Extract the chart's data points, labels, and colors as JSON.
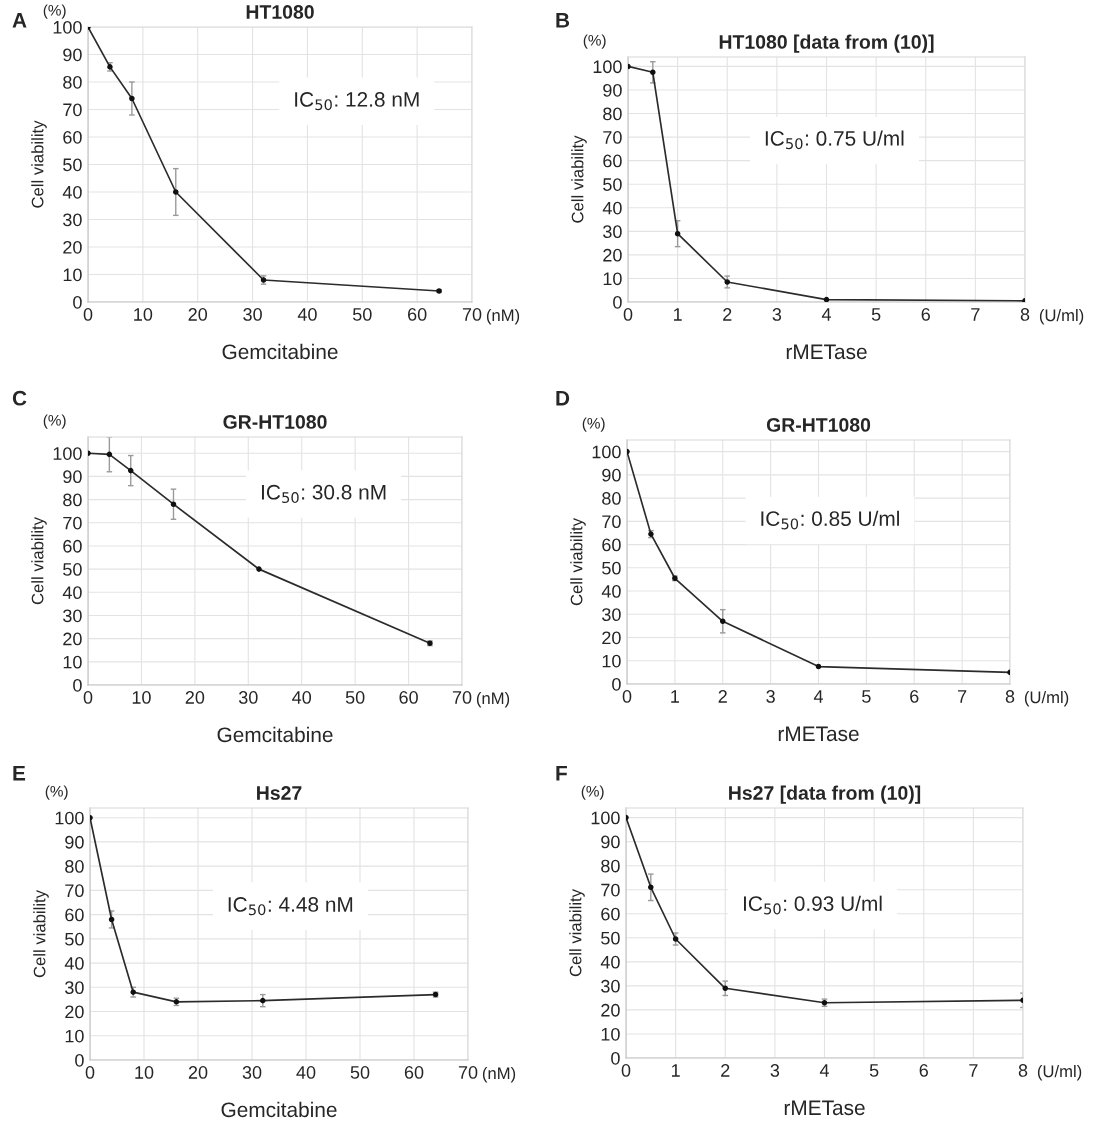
{
  "chart_data": [
    {
      "type": "line",
      "title": "HT1080",
      "xlabel": "Gemcitabine",
      "ylabel": "Cell viability",
      "annotations": [
        "A",
        "(%)",
        "(nM)",
        "IC$_{50}$: 12.8 nM"
      ],
      "x": [
        0,
        4,
        8,
        16,
        32,
        64
      ],
      "series": [
        {
          "color": "#2b2b2b",
          "values": [
            100,
            85.5,
            74,
            40,
            8,
            4
          ],
          "errors": [
            null,
            1.5,
            6,
            8.5,
            1.5,
            0.5
          ]
        }
      ],
      "xlim": [
        0,
        70
      ],
      "xticks": [
        0,
        10,
        20,
        30,
        40,
        50,
        60,
        70
      ],
      "ylim": [
        0,
        100
      ],
      "yticks": [
        0,
        10,
        20,
        30,
        40,
        50,
        60,
        70,
        80,
        90,
        100
      ],
      "grid": true,
      "marker": "circle",
      "line_style": "solid"
    },
    {
      "type": "line",
      "title": "HT1080 [data from (10)]",
      "xlabel": "rMETase",
      "ylabel": "Cell viability",
      "annotations": [
        "B",
        "(%)",
        "(U/ml)",
        "IC$_{50}$: 0.75 U/ml"
      ],
      "x": [
        0,
        0.5,
        1,
        2,
        4,
        8
      ],
      "series": [
        {
          "color": "#2b2b2b",
          "values": [
            100,
            97.5,
            29,
            8.5,
            1,
            0.5
          ],
          "errors": [
            null,
            4.5,
            5.5,
            2.5,
            null,
            null
          ]
        }
      ],
      "xlim": [
        0,
        8
      ],
      "xticks": [
        0,
        1,
        2,
        3,
        4,
        5,
        6,
        7,
        8
      ],
      "ylim": [
        0,
        104
      ],
      "yticks": [
        0,
        10,
        20,
        30,
        40,
        50,
        60,
        70,
        80,
        90,
        100
      ],
      "grid": true,
      "marker": "circle",
      "line_style": "solid"
    },
    {
      "type": "line",
      "title": "GR-HT1080",
      "xlabel": "Gemcitabine",
      "ylabel": "Cell viability",
      "annotations": [
        "C",
        "(%)",
        "(nM)",
        "IC$_{50}$: 30.8 nM"
      ],
      "x": [
        0,
        4,
        8,
        16,
        32,
        64
      ],
      "series": [
        {
          "color": "#2b2b2b",
          "values": [
            100,
            99.5,
            92.5,
            78,
            50,
            18
          ],
          "errors": [
            null,
            7.5,
            6.5,
            6.5,
            null,
            1
          ]
        }
      ],
      "xlim": [
        0,
        70
      ],
      "xticks": [
        0,
        10,
        20,
        30,
        40,
        50,
        60,
        70
      ],
      "ylim": [
        0,
        107
      ],
      "yticks": [
        0,
        10,
        20,
        30,
        40,
        50,
        60,
        70,
        80,
        90,
        100
      ],
      "grid": true,
      "marker": "circle",
      "line_style": "solid"
    },
    {
      "type": "line",
      "title": "GR-HT1080",
      "xlabel": "rMETase",
      "ylabel": "Cell viability",
      "annotations": [
        "D",
        "(%)",
        "(U/ml)",
        "IC$_{50}$: 0.85 U/ml"
      ],
      "x": [
        0,
        0.5,
        1,
        2,
        4,
        8
      ],
      "series": [
        {
          "color": "#2b2b2b",
          "values": [
            100,
            64.5,
            45.5,
            27,
            7.5,
            5
          ],
          "errors": [
            null,
            1.5,
            1,
            5,
            null,
            null
          ]
        }
      ],
      "xlim": [
        0,
        8
      ],
      "xticks": [
        0,
        1,
        2,
        3,
        4,
        5,
        6,
        7,
        8
      ],
      "ylim": [
        0,
        105
      ],
      "yticks": [
        0,
        10,
        20,
        30,
        40,
        50,
        60,
        70,
        80,
        90,
        100
      ],
      "grid": true,
      "marker": "circle",
      "line_style": "solid"
    },
    {
      "type": "line",
      "title": "Hs27",
      "xlabel": "Gemcitabine",
      "ylabel": "Cell viability",
      "annotations": [
        "E",
        "(%)",
        "(nM)",
        "IC$_{50}$: 4.48 nM"
      ],
      "x": [
        0,
        4,
        8,
        16,
        32,
        64
      ],
      "series": [
        {
          "color": "#2b2b2b",
          "values": [
            100,
            58,
            28,
            24,
            24.5,
            27
          ],
          "errors": [
            null,
            3.5,
            2,
            1.5,
            2.5,
            1
          ]
        }
      ],
      "xlim": [
        0,
        70
      ],
      "xticks": [
        0,
        10,
        20,
        30,
        40,
        50,
        60,
        70
      ],
      "ylim": [
        0,
        104
      ],
      "yticks": [
        0,
        10,
        20,
        30,
        40,
        50,
        60,
        70,
        80,
        90,
        100
      ],
      "grid": true,
      "marker": "circle",
      "line_style": "solid"
    },
    {
      "type": "line",
      "title": "Hs27 [data from (10)]",
      "xlabel": "rMETase",
      "ylabel": "Cell viability",
      "annotations": [
        "F",
        "(%)",
        "(U/ml)",
        "IC$_{50}$: 0.93 U/ml"
      ],
      "x": [
        0,
        0.5,
        1,
        2,
        4,
        8
      ],
      "series": [
        {
          "color": "#2b2b2b",
          "values": [
            100,
            71,
            49.5,
            29,
            23,
            24
          ],
          "errors": [
            null,
            5.5,
            2.5,
            3,
            1.5,
            3
          ]
        }
      ],
      "xlim": [
        0,
        8
      ],
      "xticks": [
        0,
        1,
        2,
        3,
        4,
        5,
        6,
        7,
        8
      ],
      "ylim": [
        0,
        104
      ],
      "yticks": [
        0,
        10,
        20,
        30,
        40,
        50,
        60,
        70,
        80,
        90,
        100
      ],
      "grid": true,
      "marker": "circle",
      "line_style": "solid"
    }
  ]
}
